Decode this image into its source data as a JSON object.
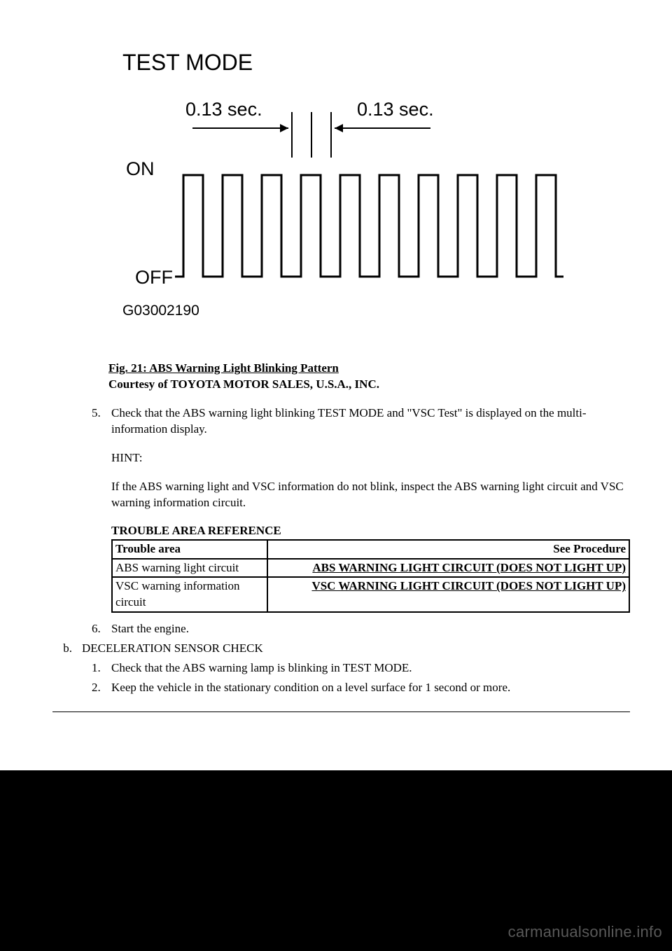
{
  "diagram": {
    "title": "TEST MODE",
    "left_label": "0.13 sec.",
    "right_label": "0.13 sec.",
    "on_label": "ON",
    "off_label": "OFF",
    "code": "G03002190",
    "font_family_title": "Arial, sans-serif",
    "title_fontsize": 32,
    "label_fontsize": 27,
    "state_fontsize": 27,
    "code_fontsize": 21,
    "line_color": "#000000",
    "line_width": 3,
    "pulse_count": 10,
    "pulse_width_on": 28,
    "pulse_width_off": 28,
    "pulse_height": 145,
    "arrow_stroke_width": 2
  },
  "caption": {
    "title": "Fig. 21: ABS Warning Light Blinking Pattern",
    "courtesy": "Courtesy of TOYOTA MOTOR SALES, U.S.A., INC."
  },
  "steps": {
    "step5_num": "5.",
    "step5_text": "Check that the ABS warning light blinking TEST MODE and \"VSC Test\" is displayed on the multi-information display.",
    "hint_label": "HINT:",
    "hint_text": "If the ABS warning light and VSC information do not blink, inspect the ABS warning light circuit and VSC warning information circuit.",
    "step6_num": "6.",
    "step6_text": "Start the engine.",
    "stepb_letter": "b.",
    "stepb_text": "DECELERATION SENSOR CHECK",
    "sub1_num": "1.",
    "sub1_text": "Check that the ABS warning lamp is blinking in TEST MODE.",
    "sub2_num": "2.",
    "sub2_text": "Keep the vehicle in the stationary condition on a level surface for 1 second or more."
  },
  "table": {
    "title": "TROUBLE AREA REFERENCE",
    "header_left": "Trouble area",
    "header_right": "See Procedure",
    "rows": [
      {
        "left": "ABS warning light circuit",
        "right": "ABS WARNING LIGHT CIRCUIT (DOES NOT LIGHT UP)"
      },
      {
        "left": "VSC warning information circuit",
        "right": "VSC WARNING LIGHT CIRCUIT (DOES NOT LIGHT UP)"
      }
    ]
  },
  "watermark": "carmanualsonline.info"
}
